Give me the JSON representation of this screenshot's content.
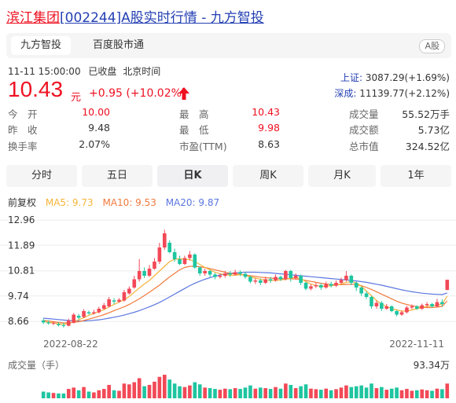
{
  "header": {
    "title_link": "滨江集团",
    "title_rest": "[002244]A股实时行情 - 九方智投"
  },
  "tabs": [
    {
      "label": "九方智投",
      "active": true
    },
    {
      "label": "百度股市通",
      "active": false
    }
  ],
  "tag": "A股",
  "quote": {
    "datetime": "11-11 15:00:00",
    "status": "已收盘",
    "timezone": "北京时间",
    "price": "10.43",
    "unit": "元",
    "change": "+0.95 (+10.02%)"
  },
  "indices": [
    {
      "name": "上证:",
      "value": "3087.29(+1.69%)"
    },
    {
      "name": "深成:",
      "value": "11139.77(+2.12%)"
    }
  ],
  "stats": [
    [
      {
        "label": "今　开",
        "value": "10.00",
        "color": "red"
      },
      {
        "label": "最　高",
        "value": "10.43",
        "color": "red"
      },
      {
        "label": "成交量",
        "value": "55.52万手",
        "color": "normal"
      }
    ],
    [
      {
        "label": "昨　收",
        "value": "9.48",
        "color": "normal"
      },
      {
        "label": "最　低",
        "value": "9.98",
        "color": "red"
      },
      {
        "label": "成交额",
        "value": "5.73亿",
        "color": "normal"
      }
    ],
    [
      {
        "label": "换手率",
        "value": "2.07%",
        "color": "normal"
      },
      {
        "label": "市盈(TTM)",
        "value": "8.63",
        "color": "normal"
      },
      {
        "label": "总市值",
        "value": "324.52亿",
        "color": "normal"
      }
    ]
  ],
  "periods": [
    {
      "label": "分时",
      "active": false
    },
    {
      "label": "五日",
      "active": false
    },
    {
      "label": "日K",
      "active": true
    },
    {
      "label": "周K",
      "active": false
    },
    {
      "label": "月K",
      "active": false
    },
    {
      "label": "1年",
      "active": false
    }
  ],
  "legend": {
    "adjust": "前复权",
    "ma5": "MA5: 9.73",
    "ma10": "MA10: 9.53",
    "ma20": "MA20: 9.87"
  },
  "colors": {
    "up": "#f24957",
    "down": "#1ec5a0",
    "ma5": "#f5b53a",
    "ma10": "#f07a3c",
    "ma20": "#5b76e0",
    "accent": "#2440b3"
  },
  "volume": {
    "label": "成交量（手）",
    "max": "93.34万"
  },
  "chart_data": {
    "type": "candlestick",
    "y_ticks": [
      "12.96",
      "11.89",
      "10.81",
      "9.74",
      "8.66"
    ],
    "ylim": [
      8.2,
      13.0
    ],
    "x_labels": [
      "2022-08-22",
      "2022-11-11"
    ],
    "candles": [
      [
        8.7,
        8.62,
        8.55,
        8.78
      ],
      [
        8.62,
        8.58,
        8.52,
        8.7
      ],
      [
        8.58,
        8.6,
        8.5,
        8.66
      ],
      [
        8.55,
        8.5,
        8.45,
        8.62
      ],
      [
        8.5,
        8.48,
        8.4,
        8.6
      ],
      [
        8.48,
        8.7,
        8.45,
        8.78
      ],
      [
        8.6,
        8.95,
        8.58,
        9.02
      ],
      [
        8.9,
        8.82,
        8.75,
        8.98
      ],
      [
        8.85,
        9.1,
        8.8,
        9.18
      ],
      [
        9.05,
        9.0,
        8.95,
        9.12
      ],
      [
        9.0,
        9.05,
        8.95,
        9.15
      ],
      [
        9.05,
        9.2,
        9.0,
        9.28
      ],
      [
        9.2,
        9.35,
        9.15,
        9.45
      ],
      [
        9.3,
        9.6,
        9.25,
        9.7
      ],
      [
        9.55,
        9.5,
        9.4,
        9.65
      ],
      [
        9.5,
        9.58,
        9.45,
        9.65
      ],
      [
        9.55,
        9.9,
        9.5,
        10.0
      ],
      [
        9.85,
        10.05,
        9.8,
        10.15
      ],
      [
        10.1,
        10.45,
        10.05,
        10.6
      ],
      [
        10.45,
        10.8,
        10.35,
        11.3
      ],
      [
        10.8,
        10.6,
        10.5,
        10.95
      ],
      [
        10.6,
        10.9,
        10.55,
        11.05
      ],
      [
        10.9,
        11.2,
        10.85,
        11.35
      ],
      [
        11.2,
        11.8,
        11.1,
        12.0
      ],
      [
        11.8,
        12.4,
        11.7,
        12.55
      ],
      [
        12.0,
        11.6,
        11.55,
        12.1
      ],
      [
        11.6,
        11.3,
        11.2,
        11.75
      ],
      [
        11.3,
        11.1,
        11.05,
        11.45
      ],
      [
        11.1,
        11.35,
        11.05,
        11.45
      ],
      [
        11.35,
        11.5,
        11.25,
        11.65
      ],
      [
        11.5,
        10.95,
        10.9,
        11.55
      ],
      [
        10.95,
        10.7,
        10.6,
        11.0
      ],
      [
        10.7,
        10.8,
        10.6,
        10.9
      ],
      [
        10.8,
        10.65,
        10.55,
        10.85
      ],
      [
        10.65,
        10.55,
        10.45,
        10.72
      ],
      [
        10.55,
        10.6,
        10.48,
        10.7
      ],
      [
        10.6,
        10.7,
        10.52,
        10.8
      ],
      [
        10.7,
        10.65,
        10.55,
        10.8
      ],
      [
        10.65,
        10.75,
        10.6,
        10.85
      ],
      [
        10.75,
        10.68,
        10.58,
        10.82
      ],
      [
        10.68,
        10.55,
        10.48,
        10.75
      ],
      [
        10.55,
        10.35,
        10.28,
        10.6
      ],
      [
        10.35,
        10.4,
        10.25,
        10.5
      ],
      [
        10.4,
        10.3,
        10.2,
        10.48
      ],
      [
        10.3,
        10.45,
        10.25,
        10.55
      ],
      [
        10.45,
        10.4,
        10.3,
        10.55
      ],
      [
        10.4,
        10.55,
        10.35,
        10.65
      ],
      [
        10.55,
        10.45,
        10.38,
        10.6
      ],
      [
        10.45,
        10.8,
        10.4,
        10.85
      ],
      [
        10.8,
        10.5,
        10.35,
        10.85
      ],
      [
        10.5,
        10.6,
        10.42,
        10.7
      ],
      [
        10.6,
        10.3,
        10.2,
        10.65
      ],
      [
        10.3,
        10.05,
        9.98,
        10.35
      ],
      [
        10.05,
        10.15,
        9.98,
        10.25
      ],
      [
        10.15,
        10.2,
        10.08,
        10.3
      ],
      [
        10.2,
        10.1,
        10.0,
        10.28
      ],
      [
        10.1,
        10.25,
        10.05,
        10.35
      ],
      [
        10.25,
        10.18,
        10.1,
        10.35
      ],
      [
        10.18,
        10.3,
        10.12,
        10.4
      ],
      [
        10.3,
        10.42,
        10.25,
        10.52
      ],
      [
        10.42,
        10.6,
        10.35,
        10.8
      ],
      [
        10.6,
        10.3,
        10.2,
        10.65
      ],
      [
        10.3,
        10.1,
        9.95,
        10.35
      ],
      [
        10.1,
        9.85,
        9.75,
        10.15
      ],
      [
        9.85,
        9.7,
        9.62,
        9.95
      ],
      [
        9.7,
        9.3,
        9.2,
        9.75
      ],
      [
        9.3,
        9.45,
        9.2,
        9.55
      ],
      [
        9.45,
        9.2,
        9.1,
        9.52
      ],
      [
        9.2,
        9.3,
        9.15,
        9.4
      ],
      [
        9.3,
        9.1,
        9.05,
        9.35
      ],
      [
        9.1,
        8.95,
        8.88,
        9.15
      ],
      [
        8.95,
        9.05,
        8.9,
        9.12
      ],
      [
        9.05,
        9.25,
        9.0,
        9.32
      ],
      [
        9.25,
        9.3,
        9.18,
        9.38
      ],
      [
        9.3,
        9.2,
        9.15,
        9.35
      ],
      [
        9.2,
        9.35,
        9.15,
        9.42
      ],
      [
        9.35,
        9.4,
        9.28,
        9.48
      ],
      [
        9.4,
        9.3,
        9.25,
        9.45
      ],
      [
        9.3,
        9.48,
        9.25,
        9.62
      ],
      [
        9.48,
        9.4,
        9.3,
        9.6
      ],
      [
        10.0,
        10.43,
        9.98,
        10.43
      ]
    ],
    "ma5": [
      8.66,
      8.62,
      8.6,
      8.56,
      8.54,
      8.57,
      8.65,
      8.73,
      8.82,
      8.92,
      9.0,
      9.07,
      9.16,
      9.28,
      9.38,
      9.48,
      9.57,
      9.72,
      9.9,
      10.08,
      10.25,
      10.4,
      10.6,
      10.8,
      11.0,
      11.2,
      11.3,
      11.32,
      11.3,
      11.28,
      11.2,
      11.08,
      10.95,
      10.85,
      10.75,
      10.68,
      10.65,
      10.62,
      10.62,
      10.65,
      10.62,
      10.55,
      10.5,
      10.45,
      10.42,
      10.4,
      10.4,
      10.42,
      10.45,
      10.5,
      10.52,
      10.48,
      10.35,
      10.25,
      10.18,
      10.15,
      10.15,
      10.18,
      10.2,
      10.25,
      10.32,
      10.35,
      10.3,
      10.15,
      9.95,
      9.75,
      9.55,
      9.4,
      9.3,
      9.2,
      9.15,
      9.1,
      9.1,
      9.15,
      9.2,
      9.25,
      9.3,
      9.32,
      9.35,
      9.4,
      9.73
    ],
    "ma10": [
      8.7,
      8.68,
      8.65,
      8.62,
      8.6,
      8.6,
      8.62,
      8.65,
      8.7,
      8.76,
      8.82,
      8.88,
      8.95,
      9.03,
      9.12,
      9.2,
      9.28,
      9.38,
      9.5,
      9.62,
      9.76,
      9.9,
      10.05,
      10.2,
      10.38,
      10.55,
      10.7,
      10.85,
      10.95,
      11.0,
      11.0,
      10.98,
      10.95,
      10.9,
      10.85,
      10.8,
      10.75,
      10.7,
      10.68,
      10.66,
      10.63,
      10.6,
      10.57,
      10.54,
      10.52,
      10.5,
      10.48,
      10.47,
      10.47,
      10.47,
      10.46,
      10.44,
      10.4,
      10.36,
      10.32,
      10.28,
      10.25,
      10.23,
      10.22,
      10.22,
      10.23,
      10.24,
      10.22,
      10.18,
      10.1,
      10.02,
      9.92,
      9.82,
      9.72,
      9.62,
      9.52,
      9.44,
      9.38,
      9.33,
      9.29,
      9.26,
      9.25,
      9.25,
      9.27,
      9.3,
      9.53
    ],
    "ma20": [
      8.8,
      8.78,
      8.76,
      8.74,
      8.72,
      8.7,
      8.69,
      8.68,
      8.68,
      8.69,
      8.71,
      8.73,
      8.76,
      8.8,
      8.84,
      8.88,
      8.93,
      8.99,
      9.05,
      9.12,
      9.2,
      9.28,
      9.37,
      9.47,
      9.58,
      9.7,
      9.82,
      9.94,
      10.06,
      10.18,
      10.28,
      10.37,
      10.45,
      10.52,
      10.58,
      10.63,
      10.67,
      10.7,
      10.72,
      10.74,
      10.75,
      10.75,
      10.75,
      10.74,
      10.73,
      10.72,
      10.7,
      10.68,
      10.66,
      10.64,
      10.62,
      10.6,
      10.58,
      10.56,
      10.54,
      10.52,
      10.5,
      10.48,
      10.46,
      10.44,
      10.42,
      10.4,
      10.38,
      10.35,
      10.32,
      10.28,
      10.24,
      10.2,
      10.15,
      10.1,
      10.05,
      10.0,
      9.96,
      9.92,
      9.89,
      9.86,
      9.84,
      9.82,
      9.81,
      9.8,
      9.87
    ],
    "volumes": [
      0.25,
      0.22,
      0.2,
      0.18,
      0.18,
      0.35,
      0.4,
      0.3,
      0.42,
      0.25,
      0.22,
      0.3,
      0.35,
      0.5,
      0.3,
      0.28,
      0.55,
      0.52,
      0.6,
      0.75,
      0.45,
      0.5,
      0.62,
      0.8,
      0.88,
      0.7,
      0.55,
      0.45,
      0.42,
      0.48,
      0.6,
      0.52,
      0.4,
      0.38,
      0.35,
      0.32,
      0.36,
      0.34,
      0.38,
      0.35,
      0.4,
      0.48,
      0.36,
      0.4,
      0.38,
      0.35,
      0.42,
      0.36,
      0.55,
      0.5,
      0.38,
      0.45,
      0.52,
      0.36,
      0.34,
      0.32,
      0.36,
      0.3,
      0.34,
      0.4,
      0.48,
      0.42,
      0.45,
      0.48,
      0.4,
      0.55,
      0.38,
      0.42,
      0.32,
      0.36,
      0.4,
      0.3,
      0.35,
      0.28,
      0.3,
      0.33,
      0.3,
      0.28,
      0.36,
      0.34,
      0.55
    ]
  }
}
